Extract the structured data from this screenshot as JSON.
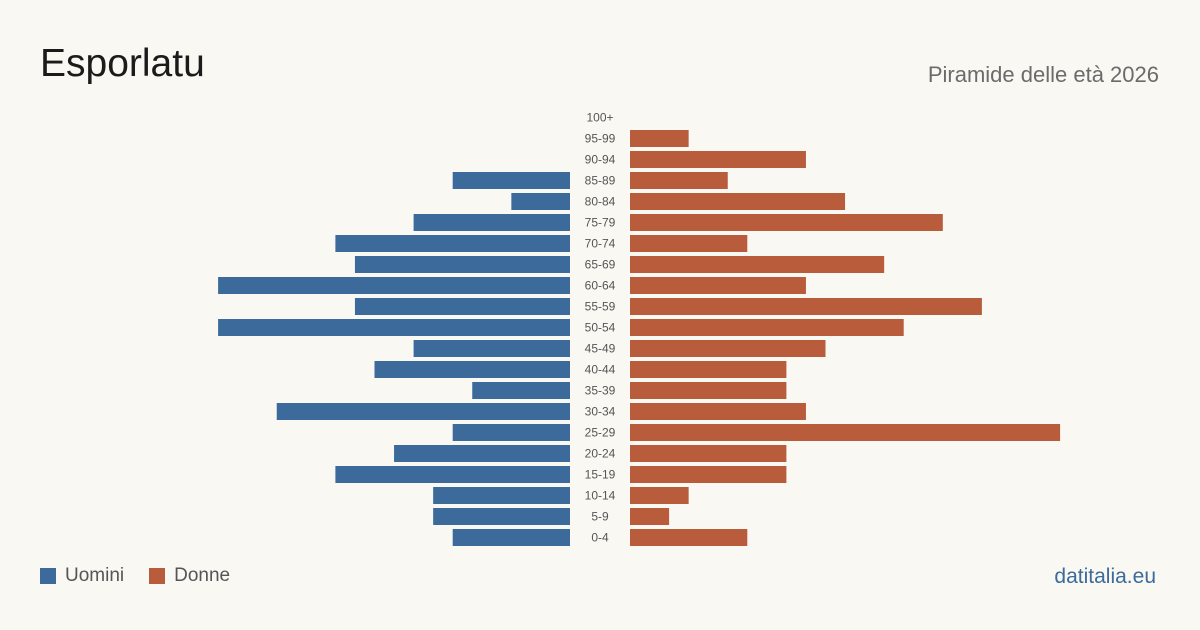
{
  "header": {
    "title": "Esporlatu",
    "subtitle": "Piramide delle età 2026"
  },
  "legend": {
    "men_label": "Uomini",
    "women_label": "Donne"
  },
  "source": "datitalia.eu",
  "colors": {
    "men": "#3b6a9b",
    "women": "#b85c3c"
  },
  "chart_data": {
    "type": "bar",
    "orientation": "horizontal",
    "layout": "population-pyramid",
    "categories": [
      "100+",
      "95-99",
      "90-94",
      "85-89",
      "80-84",
      "75-79",
      "70-74",
      "65-69",
      "60-64",
      "55-59",
      "50-54",
      "45-49",
      "40-44",
      "35-39",
      "30-34",
      "25-29",
      "20-24",
      "15-19",
      "10-14",
      "5-9",
      "0-4"
    ],
    "series": [
      {
        "name": "Uomini",
        "values": [
          0,
          0,
          0,
          6,
          3,
          8,
          12,
          11,
          18,
          11,
          18,
          8,
          10,
          5,
          15,
          6,
          9,
          12,
          7,
          7,
          6
        ]
      },
      {
        "name": "Donne",
        "values": [
          0,
          3,
          9,
          5,
          11,
          16,
          6,
          13,
          9,
          18,
          14,
          10,
          8,
          8,
          9,
          22,
          8,
          8,
          3,
          2,
          6
        ]
      }
    ],
    "legend_position": "bottom-left",
    "grid": false
  }
}
